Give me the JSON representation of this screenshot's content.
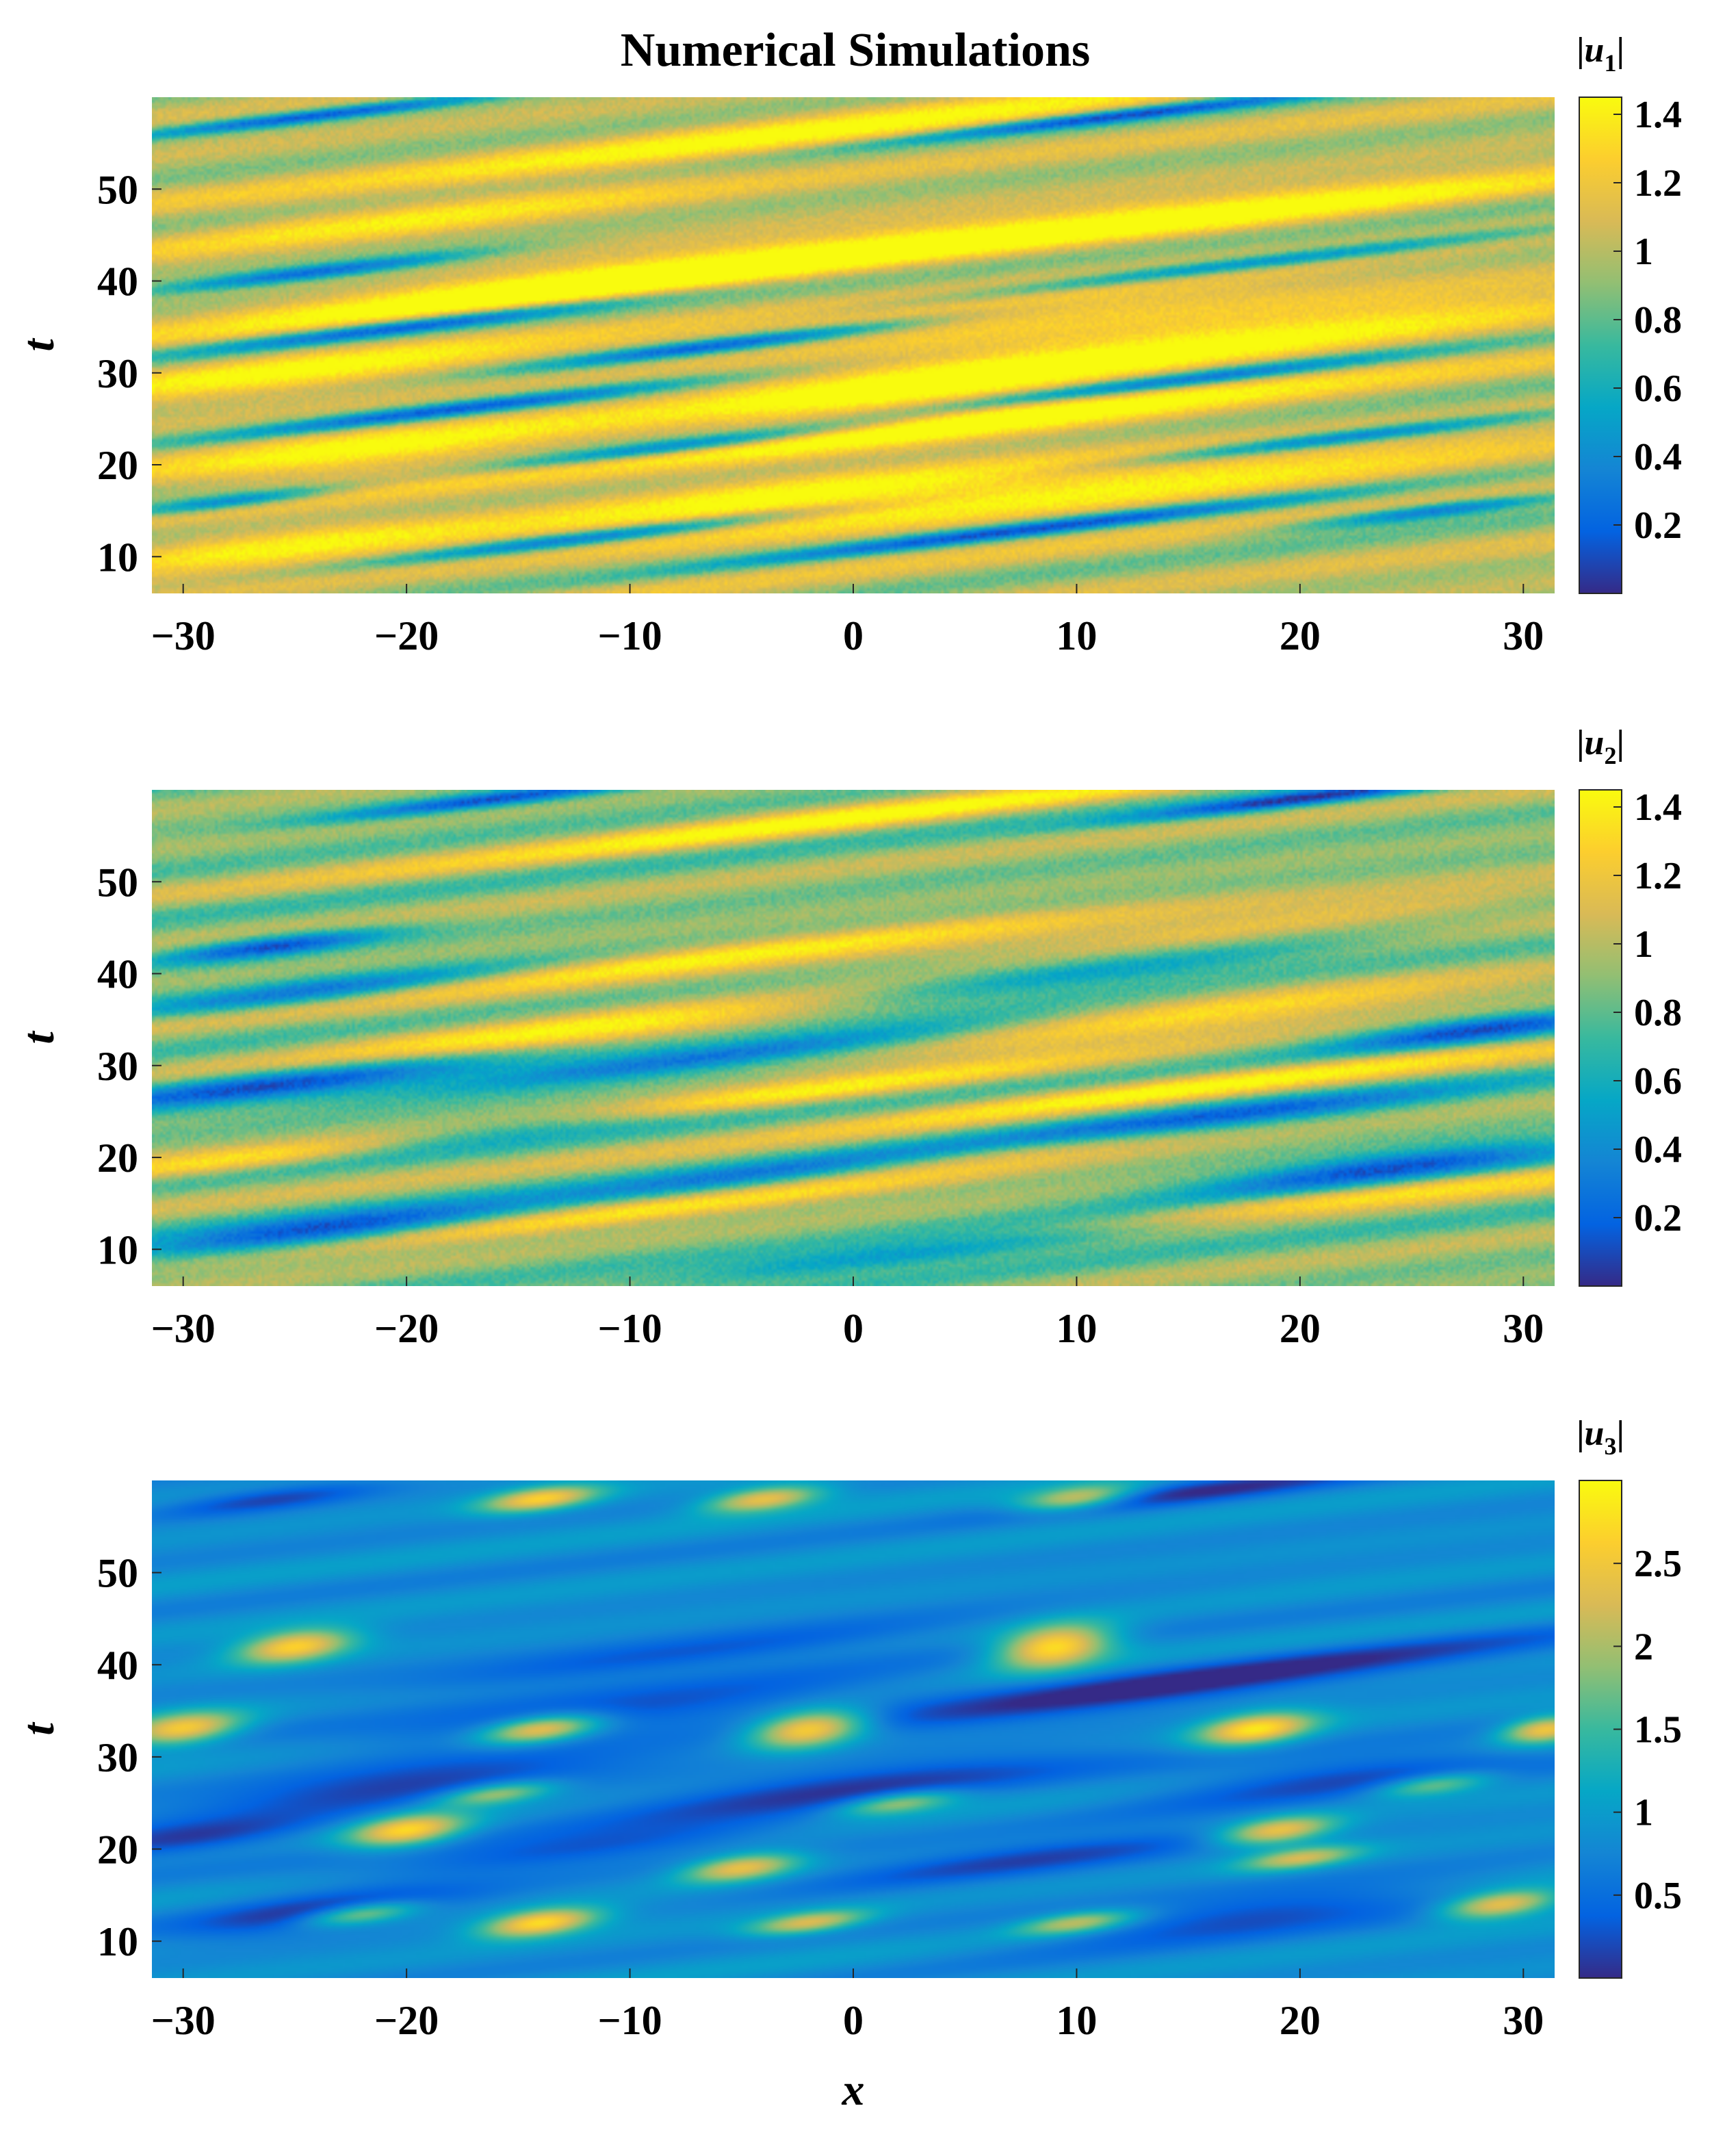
{
  "title": "Numerical Simulations",
  "chart_data": [
    {
      "type": "heatmap",
      "colorbar_label": "|u1|",
      "colorbar_var": "u",
      "colorbar_sub": "1",
      "xlabel": "",
      "ylabel": "t",
      "xlim": [
        -31.4,
        31.4
      ],
      "ylim": [
        6,
        60
      ],
      "xticks": [
        "−30",
        "−20",
        "−10",
        "0",
        "10",
        "20",
        "30"
      ],
      "yticks": [
        "10",
        "20",
        "30",
        "40",
        "50"
      ],
      "clim": [
        0,
        1.45
      ],
      "cticks": [
        "0.2",
        "0.4",
        "0.6",
        "0.8",
        "1",
        "1.2",
        "1.4"
      ],
      "colormap": "parula",
      "noise": 0.06,
      "base": 1.0,
      "features": [
        {
          "x": -26,
          "t": 11,
          "v": 1.35,
          "len": 14,
          "w": 1.8
        },
        {
          "x": -12,
          "t": 12,
          "v": 0.15,
          "len": 16,
          "w": 0.6
        },
        {
          "x": 8,
          "t": 13,
          "v": 0.15,
          "len": 22,
          "w": 0.6
        },
        {
          "x": 26,
          "t": 15,
          "v": 0.2,
          "len": 10,
          "w": 0.6
        },
        {
          "x": -4,
          "t": 16,
          "v": 1.4,
          "len": 22,
          "w": 2.0
        },
        {
          "x": -28,
          "t": 16,
          "v": 0.2,
          "len": 8,
          "w": 0.6
        },
        {
          "x": 14,
          "t": 18,
          "v": 1.35,
          "len": 30,
          "w": 2.2
        },
        {
          "x": -22,
          "t": 21,
          "v": 1.4,
          "len": 16,
          "w": 2.2
        },
        {
          "x": -8,
          "t": 22,
          "v": 0.2,
          "len": 14,
          "w": 0.6
        },
        {
          "x": 22,
          "t": 23,
          "v": 0.2,
          "len": 16,
          "w": 0.6
        },
        {
          "x": 6,
          "t": 25,
          "v": 1.4,
          "len": 26,
          "w": 1.8
        },
        {
          "x": -18,
          "t": 26,
          "v": 0.15,
          "len": 18,
          "w": 0.6
        },
        {
          "x": 2,
          "t": 28,
          "v": 1.4,
          "len": 18,
          "w": 2.0
        },
        {
          "x": -25,
          "t": 30,
          "v": 1.35,
          "len": 16,
          "w": 1.8
        },
        {
          "x": 14,
          "t": 29,
          "v": 0.2,
          "len": 18,
          "w": 0.6
        },
        {
          "x": -6,
          "t": 33,
          "v": 0.15,
          "len": 14,
          "w": 0.6
        },
        {
          "x": 18,
          "t": 34,
          "v": 1.4,
          "len": 26,
          "w": 2.0
        },
        {
          "x": -20,
          "t": 35,
          "v": 0.2,
          "len": 16,
          "w": 0.6
        },
        {
          "x": 8,
          "t": 37,
          "v": 1.35,
          "len": 28,
          "w": 1.6
        },
        {
          "x": -14,
          "t": 39,
          "v": 1.4,
          "len": 24,
          "w": 1.8
        },
        {
          "x": 18,
          "t": 42,
          "v": 0.2,
          "len": 24,
          "w": 0.6
        },
        {
          "x": -24,
          "t": 41,
          "v": 0.2,
          "len": 12,
          "w": 0.6
        },
        {
          "x": 2,
          "t": 44,
          "v": 1.35,
          "len": 30,
          "w": 1.6
        },
        {
          "x": -20,
          "t": 47,
          "v": 1.3,
          "len": 20,
          "w": 1.5
        },
        {
          "x": 20,
          "t": 48,
          "v": 1.3,
          "len": 24,
          "w": 1.5
        },
        {
          "x": -2,
          "t": 56,
          "v": 1.35,
          "len": 30,
          "w": 1.5
        },
        {
          "x": -24,
          "t": 58,
          "v": 0.2,
          "len": 14,
          "w": 0.5
        },
        {
          "x": 12,
          "t": 58,
          "v": 0.2,
          "len": 16,
          "w": 0.5
        }
      ]
    },
    {
      "type": "heatmap",
      "colorbar_label": "|u2|",
      "colorbar_var": "u",
      "colorbar_sub": "2",
      "xlabel": "",
      "ylabel": "t",
      "xlim": [
        -31.4,
        31.4
      ],
      "ylim": [
        6,
        60
      ],
      "xticks": [
        "−30",
        "−20",
        "−10",
        "0",
        "10",
        "20",
        "30"
      ],
      "yticks": [
        "10",
        "20",
        "30",
        "40",
        "50"
      ],
      "clim": [
        0,
        1.45
      ],
      "cticks": [
        "0.2",
        "0.4",
        "0.6",
        "0.8",
        "1",
        "1.2",
        "1.4"
      ],
      "colormap": "parula",
      "noise": 0.06,
      "base": 0.9,
      "features": [
        {
          "x": -24,
          "t": 12,
          "v": 0.1,
          "len": 14,
          "w": 1.2
        },
        {
          "x": 4,
          "t": 10,
          "v": 0.15,
          "len": 22,
          "w": 1.0
        },
        {
          "x": -10,
          "t": 14,
          "v": 1.4,
          "len": 30,
          "w": 0.9
        },
        {
          "x": 20,
          "t": 15,
          "v": 1.4,
          "len": 28,
          "w": 0.9
        },
        {
          "x": -4,
          "t": 18,
          "v": 0.2,
          "len": 16,
          "w": 1.0
        },
        {
          "x": 24,
          "t": 19,
          "v": 0.15,
          "len": 14,
          "w": 1.2
        },
        {
          "x": -26,
          "t": 20,
          "v": 1.35,
          "len": 16,
          "w": 0.9
        },
        {
          "x": 8,
          "t": 21,
          "v": 1.4,
          "len": 24,
          "w": 0.9
        },
        {
          "x": -16,
          "t": 23,
          "v": 0.2,
          "len": 14,
          "w": 1.0
        },
        {
          "x": 16,
          "t": 24,
          "v": 0.15,
          "len": 18,
          "w": 1.2
        },
        {
          "x": -6,
          "t": 26,
          "v": 1.4,
          "len": 26,
          "w": 0.9
        },
        {
          "x": -26,
          "t": 28,
          "v": 0.15,
          "len": 16,
          "w": 1.2
        },
        {
          "x": 16,
          "t": 28,
          "v": 1.35,
          "len": 26,
          "w": 0.9
        },
        {
          "x": -6,
          "t": 31,
          "v": 0.2,
          "len": 22,
          "w": 1.0
        },
        {
          "x": -12,
          "t": 34,
          "v": 1.35,
          "len": 22,
          "w": 1.6
        },
        {
          "x": 14,
          "t": 35,
          "v": 1.35,
          "len": 24,
          "w": 1.4
        },
        {
          "x": 28,
          "t": 34,
          "v": 0.2,
          "len": 10,
          "w": 1.0
        },
        {
          "x": -24,
          "t": 38,
          "v": 0.3,
          "len": 14,
          "w": 1.0
        },
        {
          "x": 10,
          "t": 40,
          "v": 0.3,
          "len": 22,
          "w": 1.0
        },
        {
          "x": -6,
          "t": 42,
          "v": 1.35,
          "len": 30,
          "w": 1.0
        },
        {
          "x": 18,
          "t": 45,
          "v": 1.35,
          "len": 26,
          "w": 1.0
        },
        {
          "x": -26,
          "t": 43,
          "v": 0.15,
          "len": 8,
          "w": 0.8
        },
        {
          "x": 0,
          "t": 57,
          "v": 1.35,
          "len": 30,
          "w": 1.0
        },
        {
          "x": -16,
          "t": 59,
          "v": 0.15,
          "len": 12,
          "w": 0.6
        },
        {
          "x": 20,
          "t": 59,
          "v": 0.15,
          "len": 12,
          "w": 0.6
        }
      ]
    },
    {
      "type": "heatmap",
      "colorbar_label": "|u3|",
      "colorbar_var": "u",
      "colorbar_sub": "3",
      "xlabel": "x",
      "ylabel": "t",
      "xlim": [
        -31.4,
        31.4
      ],
      "ylim": [
        6,
        60
      ],
      "xticks": [
        "−30",
        "−20",
        "−10",
        "0",
        "10",
        "20",
        "30"
      ],
      "yticks": [
        "10",
        "20",
        "30",
        "40",
        "50"
      ],
      "clim": [
        0,
        3.0
      ],
      "cticks": [
        "0.5",
        "1",
        "1.5",
        "2",
        "2.5"
      ],
      "colormap": "parula",
      "noise": 0.0,
      "base": 0.85,
      "features": [
        {
          "x": -14,
          "t": 12,
          "v": 2.8,
          "len": 4,
          "w": 1.0
        },
        {
          "x": -22,
          "t": 13,
          "v": 2.3,
          "len": 4,
          "w": 0.8
        },
        {
          "x": -2,
          "t": 12,
          "v": 2.3,
          "len": 4,
          "w": 0.8
        },
        {
          "x": 10,
          "t": 12,
          "v": 2.2,
          "len": 4,
          "w": 0.8
        },
        {
          "x": 29,
          "t": 14,
          "v": 2.6,
          "len": 4,
          "w": 1.0
        },
        {
          "x": -24,
          "t": 13,
          "v": 0.1,
          "len": 10,
          "w": 1.5
        },
        {
          "x": 18,
          "t": 13,
          "v": 0.1,
          "len": 14,
          "w": 1.5
        },
        {
          "x": -5,
          "t": 18,
          "v": 2.5,
          "len": 4,
          "w": 1.0
        },
        {
          "x": 20,
          "t": 19,
          "v": 2.2,
          "len": 4,
          "w": 0.8
        },
        {
          "x": -20,
          "t": 22,
          "v": 2.7,
          "len": 4,
          "w": 1.2
        },
        {
          "x": 19,
          "t": 22,
          "v": 2.6,
          "len": 4,
          "w": 1.0
        },
        {
          "x": -12,
          "t": 20,
          "v": 0.15,
          "len": 16,
          "w": 1.2
        },
        {
          "x": 8,
          "t": 19,
          "v": 0.1,
          "len": 16,
          "w": 1.2
        },
        {
          "x": -30,
          "t": 21,
          "v": 0.1,
          "len": 10,
          "w": 1.2
        },
        {
          "x": -20,
          "t": 27,
          "v": 0.1,
          "len": 16,
          "w": 1.6
        },
        {
          "x": 0,
          "t": 27,
          "v": 0.1,
          "len": 18,
          "w": 1.5
        },
        {
          "x": -16,
          "t": 26,
          "v": 2.2,
          "len": 4,
          "w": 0.8
        },
        {
          "x": 2,
          "t": 25,
          "v": 2.1,
          "len": 4,
          "w": 0.8
        },
        {
          "x": 26,
          "t": 27,
          "v": 2.0,
          "len": 4,
          "w": 0.8
        },
        {
          "x": 22,
          "t": 28,
          "v": 0.15,
          "len": 14,
          "w": 1.5
        },
        {
          "x": -30,
          "t": 33,
          "v": 2.6,
          "len": 4,
          "w": 1.2
        },
        {
          "x": -14,
          "t": 33,
          "v": 2.7,
          "len": 4,
          "w": 1.0
        },
        {
          "x": -2,
          "t": 33,
          "v": 2.9,
          "len": 4,
          "w": 1.4
        },
        {
          "x": 18,
          "t": 33,
          "v": 2.8,
          "len": 4,
          "w": 1.2
        },
        {
          "x": 31,
          "t": 33,
          "v": 2.6,
          "len": 3,
          "w": 1.0
        },
        {
          "x": -10,
          "t": 35,
          "v": 0.15,
          "len": 20,
          "w": 1.4
        },
        {
          "x": 10,
          "t": 36,
          "v": 0.2,
          "len": 20,
          "w": 1.2
        },
        {
          "x": -25,
          "t": 42,
          "v": 2.7,
          "len": 4,
          "w": 1.2
        },
        {
          "x": 9,
          "t": 42,
          "v": 2.95,
          "len": 4,
          "w": 1.6
        },
        {
          "x": -8,
          "t": 41,
          "v": 0.2,
          "len": 22,
          "w": 1.2
        },
        {
          "x": 20,
          "t": 40,
          "v": 0.25,
          "len": 22,
          "w": 1.2
        },
        {
          "x": -14,
          "t": 58,
          "v": 2.6,
          "len": 4,
          "w": 0.9
        },
        {
          "x": -4,
          "t": 58,
          "v": 2.5,
          "len": 4,
          "w": 0.9
        },
        {
          "x": 10,
          "t": 58,
          "v": 2.4,
          "len": 4,
          "w": 0.9
        },
        {
          "x": -26,
          "t": 58,
          "v": 0.15,
          "len": 8,
          "w": 0.9
        },
        {
          "x": 16,
          "t": 59,
          "v": 0.15,
          "len": 12,
          "w": 0.9
        }
      ]
    }
  ],
  "colors": {
    "parula": [
      "#352a87",
      "#0363e1",
      "#1485d4",
      "#06a7c6",
      "#38b99e",
      "#92bf73",
      "#d9ba56",
      "#fcce2e",
      "#f9fb0e"
    ]
  }
}
